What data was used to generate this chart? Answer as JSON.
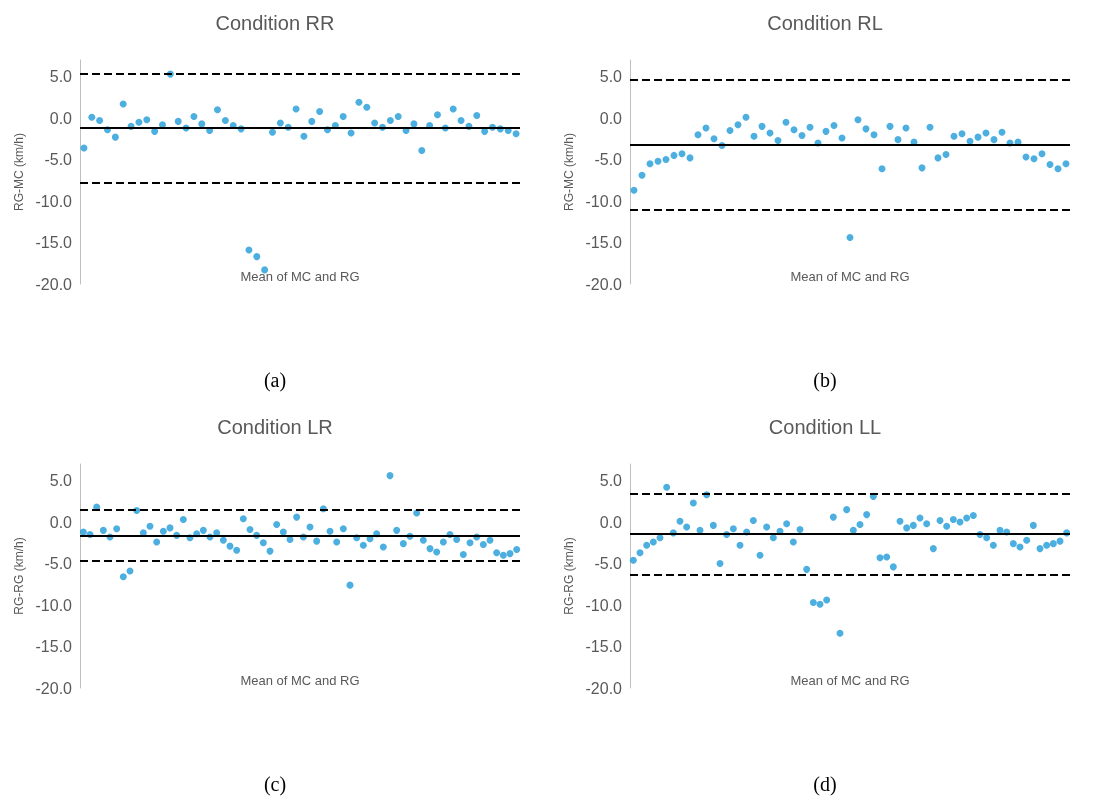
{
  "chart_data": [
    {
      "type": "scatter",
      "title": "Condition RR",
      "xlabel": "Mean of MC and RG",
      "ylabel": "RG-MC (km/h)",
      "annotations": [
        "(a)"
      ],
      "categories": [
        null,
        null,
        null,
        null,
        null,
        null,
        null,
        null,
        null,
        null,
        null,
        null,
        null,
        null,
        null,
        null,
        null,
        null,
        null,
        null,
        null,
        null,
        null,
        null,
        null,
        null,
        null,
        null,
        null,
        null,
        null,
        null,
        null,
        null,
        null,
        null,
        null,
        null,
        null,
        null,
        null,
        null,
        null,
        null,
        null,
        null,
        null,
        null,
        null,
        null,
        null,
        null,
        null,
        null,
        null,
        null
      ],
      "series": [
        {
          "color": "#1f9bd7",
          "values": [
            -3.6,
            0.1,
            -0.3,
            -1.4,
            -2.3,
            1.7,
            -1.0,
            -0.5,
            -0.2,
            -1.6,
            -0.8,
            5.3,
            -0.4,
            -1.2,
            0.2,
            -0.7,
            -1.5,
            1.0,
            -0.3,
            -0.9,
            -1.3,
            -15.9,
            -16.7,
            -18.3,
            -1.7,
            -0.6,
            -1.1,
            1.1,
            -2.2,
            -0.4,
            0.8,
            -1.4,
            -0.9,
            0.2,
            -1.8,
            1.9,
            1.3,
            -0.6,
            -1.1,
            -0.3,
            0.2,
            -1.5,
            -0.7,
            -3.9,
            -0.9,
            0.4,
            -1.2,
            1.1,
            -0.3,
            -1.0,
            0.3,
            -1.6,
            -1.1,
            -1.3,
            -1.5,
            -1.9
          ]
        }
      ],
      "ref_lines": [
        {
          "axis": "y",
          "value": -1.2,
          "line_style": "solid",
          "color": "#000000"
        },
        {
          "axis": "y",
          "value": 5.4,
          "line_style": "dashed",
          "color": "#000000"
        },
        {
          "axis": "y",
          "value": -7.8,
          "line_style": "dashed",
          "color": "#000000"
        }
      ],
      "ylim": [
        -20,
        7
      ],
      "yticks": [
        {
          "value": -20,
          "label": "-20.0"
        },
        {
          "value": -15,
          "label": "-15.0"
        },
        {
          "value": -10,
          "label": "-10.0"
        },
        {
          "value": -5,
          "label": "-5.0"
        },
        {
          "value": 0,
          "label": "0.0"
        },
        {
          "value": 5,
          "label": "5.0"
        }
      ],
      "tick_labels": "y",
      "marker": "circle"
    },
    {
      "type": "scatter",
      "title": "Condition RL",
      "xlabel": "Mean of MC and RG",
      "ylabel": "RG-MC (km/h)",
      "annotations": [
        "(b)"
      ],
      "categories": [
        null,
        null,
        null,
        null,
        null,
        null,
        null,
        null,
        null,
        null,
        null,
        null,
        null,
        null,
        null,
        null,
        null,
        null,
        null,
        null,
        null,
        null,
        null,
        null,
        null,
        null,
        null,
        null,
        null,
        null,
        null,
        null,
        null,
        null,
        null,
        null,
        null,
        null,
        null,
        null,
        null,
        null,
        null,
        null,
        null,
        null,
        null,
        null,
        null,
        null,
        null,
        null,
        null,
        null,
        null
      ],
      "series": [
        {
          "color": "#1f9bd7",
          "values": [
            -8.7,
            -6.9,
            -5.5,
            -5.2,
            -5.0,
            -4.5,
            -4.3,
            -4.8,
            -2.0,
            -1.2,
            -2.5,
            -3.3,
            -1.5,
            -0.8,
            0.1,
            -2.2,
            -1.0,
            -1.8,
            -2.7,
            -0.5,
            -1.4,
            -2.1,
            -1.1,
            -3.0,
            -1.6,
            -0.9,
            -2.4,
            -14.4,
            -0.2,
            -1.3,
            -2.0,
            -6.1,
            -1.0,
            -2.6,
            -1.2,
            -2.9,
            -6.0,
            -1.1,
            -4.8,
            -4.4,
            -2.2,
            -1.9,
            -2.8,
            -2.3,
            -1.8,
            -2.6,
            -1.7,
            -3.0,
            -2.9,
            -4.7,
            -4.9,
            -4.3,
            -5.6,
            -6.1,
            -5.5
          ]
        }
      ],
      "ref_lines": [
        {
          "axis": "y",
          "value": -3.2,
          "line_style": "solid",
          "color": "#000000"
        },
        {
          "axis": "y",
          "value": 4.6,
          "line_style": "dashed",
          "color": "#000000"
        },
        {
          "axis": "y",
          "value": -11.0,
          "line_style": "dashed",
          "color": "#000000"
        }
      ],
      "ylim": [
        -20,
        7
      ],
      "yticks": [
        {
          "value": -20,
          "label": "-20.0"
        },
        {
          "value": -15,
          "label": "-15.0"
        },
        {
          "value": -10,
          "label": "-10.0"
        },
        {
          "value": -5,
          "label": "-5.0"
        },
        {
          "value": 0,
          "label": "0.0"
        },
        {
          "value": 5,
          "label": "5.0"
        }
      ],
      "tick_labels": "y",
      "marker": "circle"
    },
    {
      "type": "scatter",
      "title": "Condition LR",
      "xlabel": "Mean of MC and RG",
      "ylabel": "RG-RG (km/h)",
      "annotations": [
        "(c)"
      ],
      "categories": [
        null,
        null,
        null,
        null,
        null,
        null,
        null,
        null,
        null,
        null,
        null,
        null,
        null,
        null,
        null,
        null,
        null,
        null,
        null,
        null,
        null,
        null,
        null,
        null,
        null,
        null,
        null,
        null,
        null,
        null,
        null,
        null,
        null,
        null,
        null,
        null,
        null,
        null,
        null,
        null,
        null,
        null,
        null,
        null,
        null,
        null,
        null,
        null,
        null,
        null,
        null,
        null,
        null,
        null,
        null,
        null,
        null,
        null,
        null,
        null,
        null,
        null,
        null,
        null,
        null,
        null
      ],
      "series": [
        {
          "color": "#1f9bd7",
          "values": [
            -1.2,
            -1.5,
            1.8,
            -1.0,
            -1.8,
            -0.8,
            -6.6,
            -5.9,
            1.4,
            -1.3,
            -0.5,
            -2.4,
            -1.1,
            -0.7,
            -1.6,
            0.3,
            -1.9,
            -1.4,
            -1.0,
            -1.8,
            -1.3,
            -2.2,
            -2.9,
            -3.4,
            0.4,
            -0.9,
            -1.6,
            -2.5,
            -3.5,
            -0.3,
            -1.2,
            -2.1,
            0.6,
            -1.8,
            -0.6,
            -2.3,
            1.6,
            -1.1,
            -2.4,
            -0.8,
            -7.6,
            -1.9,
            -2.8,
            -2.0,
            -1.4,
            -3.0,
            5.6,
            -1.0,
            -2.6,
            -1.7,
            1.1,
            -2.2,
            -3.2,
            -3.6,
            -2.4,
            -1.5,
            -2.1,
            -3.9,
            -2.5,
            -1.8,
            -2.7,
            -2.2,
            -3.7,
            -4.0,
            -3.8,
            -3.3
          ]
        }
      ],
      "ref_lines": [
        {
          "axis": "y",
          "value": -1.6,
          "line_style": "solid",
          "color": "#000000"
        },
        {
          "axis": "y",
          "value": 1.5,
          "line_style": "dashed",
          "color": "#000000"
        },
        {
          "axis": "y",
          "value": -4.7,
          "line_style": "dashed",
          "color": "#000000"
        }
      ],
      "ylim": [
        -20,
        7
      ],
      "yticks": [
        {
          "value": -20,
          "label": "-20.0"
        },
        {
          "value": -15,
          "label": "-15.0"
        },
        {
          "value": -10,
          "label": "-10.0"
        },
        {
          "value": -5,
          "label": "-5.0"
        },
        {
          "value": 0,
          "label": "0.0"
        },
        {
          "value": 5,
          "label": "5.0"
        }
      ],
      "tick_labels": "y",
      "marker": "circle"
    },
    {
      "type": "scatter",
      "title": "Condition LL",
      "xlabel": "Mean of MC and RG",
      "ylabel": "RG-RG (km/h)",
      "annotations": [
        "(d)"
      ],
      "categories": [
        null,
        null,
        null,
        null,
        null,
        null,
        null,
        null,
        null,
        null,
        null,
        null,
        null,
        null,
        null,
        null,
        null,
        null,
        null,
        null,
        null,
        null,
        null,
        null,
        null,
        null,
        null,
        null,
        null,
        null,
        null,
        null,
        null,
        null,
        null,
        null,
        null,
        null,
        null,
        null,
        null,
        null,
        null,
        null,
        null,
        null,
        null,
        null,
        null,
        null,
        null,
        null,
        null,
        null,
        null,
        null,
        null,
        null,
        null,
        null,
        null,
        null,
        null,
        null,
        null,
        null
      ],
      "series": [
        {
          "color": "#1f9bd7",
          "values": [
            -4.6,
            -3.7,
            -2.8,
            -2.4,
            -1.9,
            4.2,
            -1.3,
            0.1,
            -0.6,
            2.3,
            -1.0,
            3.3,
            -0.4,
            -5.0,
            -1.5,
            -0.8,
            -2.8,
            -1.2,
            0.2,
            -4.0,
            -0.6,
            -1.9,
            -1.1,
            -0.2,
            -2.4,
            -0.9,
            -5.7,
            -9.7,
            -9.9,
            -9.4,
            0.6,
            -13.4,
            1.5,
            -1.0,
            -0.3,
            0.9,
            3.1,
            -4.3,
            -4.2,
            -5.4,
            0.1,
            -0.7,
            -0.4,
            0.5,
            -0.2,
            -3.2,
            0.2,
            -0.5,
            0.3,
            0.0,
            0.5,
            0.8,
            -1.5,
            -1.9,
            -2.8,
            -1.0,
            -1.2,
            -2.6,
            -3.0,
            -2.2,
            -0.4,
            -3.2,
            -2.8,
            -2.6,
            -2.3,
            -1.3
          ]
        }
      ],
      "ref_lines": [
        {
          "axis": "y",
          "value": -1.4,
          "line_style": "solid",
          "color": "#000000"
        },
        {
          "axis": "y",
          "value": 3.4,
          "line_style": "dashed",
          "color": "#000000"
        },
        {
          "axis": "y",
          "value": -6.3,
          "line_style": "dashed",
          "color": "#000000"
        }
      ],
      "ylim": [
        -20,
        7
      ],
      "yticks": [
        {
          "value": -20,
          "label": "-20.0"
        },
        {
          "value": -15,
          "label": "-15.0"
        },
        {
          "value": -10,
          "label": "-10.0"
        },
        {
          "value": -5,
          "label": "-5.0"
        },
        {
          "value": 0,
          "label": "0.0"
        },
        {
          "value": 5,
          "label": "5.0"
        }
      ],
      "tick_labels": "y",
      "marker": "circle"
    }
  ]
}
